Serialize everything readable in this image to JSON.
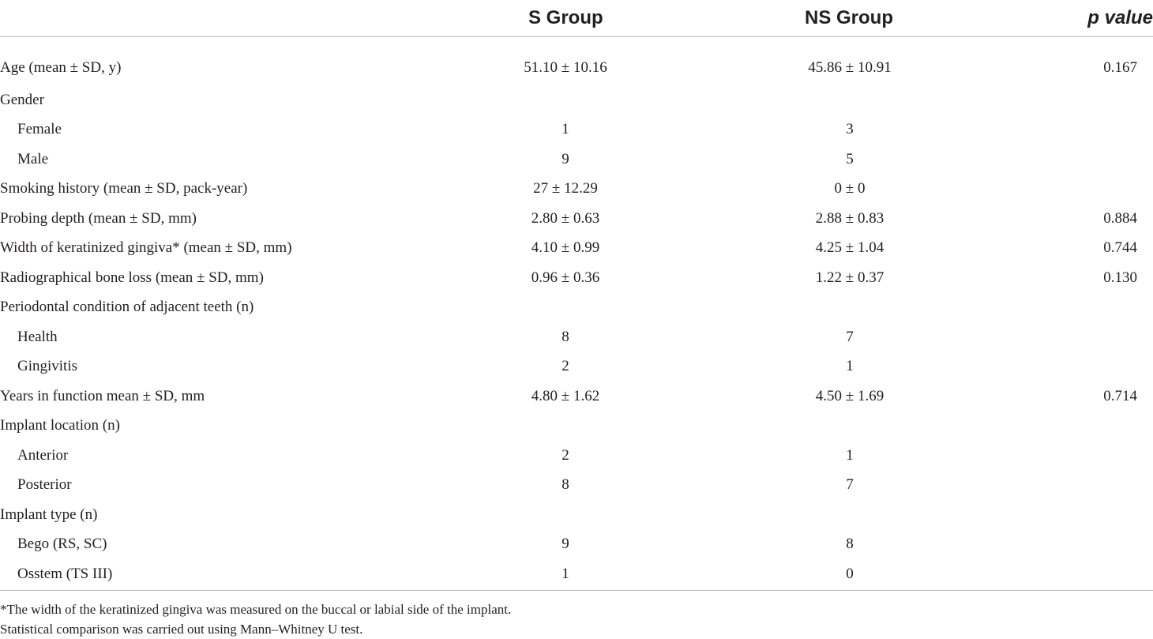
{
  "table": {
    "headers": {
      "label": "",
      "s_group": "S Group",
      "ns_group": "NS Group",
      "p_value": "p value"
    },
    "rows": [
      {
        "label": "Age (mean ± SD, y)",
        "indent": false,
        "s": "51.10 ± 10.16",
        "ns": "45.86 ± 10.91",
        "p": "0.167"
      },
      {
        "label": "Gender",
        "indent": false,
        "s": "",
        "ns": "",
        "p": ""
      },
      {
        "label": "Female",
        "indent": true,
        "s": "1",
        "ns": "3",
        "p": ""
      },
      {
        "label": "Male",
        "indent": true,
        "s": "9",
        "ns": "5",
        "p": ""
      },
      {
        "label": "Smoking history (mean ± SD, pack-year)",
        "indent": false,
        "s": "27 ± 12.29",
        "ns": "0 ± 0",
        "p": ""
      },
      {
        "label": "Probing depth (mean ± SD, mm)",
        "indent": false,
        "s": "2.80 ± 0.63",
        "ns": "2.88 ± 0.83",
        "p": "0.884"
      },
      {
        "label": "Width of keratinized gingiva* (mean ± SD, mm)",
        "indent": false,
        "s": "4.10 ± 0.99",
        "ns": "4.25 ± 1.04",
        "p": "0.744"
      },
      {
        "label": "Radiographical bone loss (mean ± SD, mm)",
        "indent": false,
        "s": "0.96 ± 0.36",
        "ns": "1.22 ± 0.37",
        "p": "0.130"
      },
      {
        "label": "Periodontal condition of adjacent teeth (n)",
        "indent": false,
        "s": "",
        "ns": "",
        "p": ""
      },
      {
        "label": "Health",
        "indent": true,
        "s": "8",
        "ns": "7",
        "p": ""
      },
      {
        "label": "Gingivitis",
        "indent": true,
        "s": "2",
        "ns": "1",
        "p": ""
      },
      {
        "label": "Years in function mean ± SD, mm",
        "indent": false,
        "s": "4.80 ± 1.62",
        "ns": "4.50 ± 1.69",
        "p": "0.714"
      },
      {
        "label": "Implant location (n)",
        "indent": false,
        "s": "",
        "ns": "",
        "p": ""
      },
      {
        "label": "Anterior",
        "indent": true,
        "s": "2",
        "ns": "1",
        "p": ""
      },
      {
        "label": "Posterior",
        "indent": true,
        "s": "8",
        "ns": "7",
        "p": ""
      },
      {
        "label": "Implant type (n)",
        "indent": false,
        "s": "",
        "ns": "",
        "p": ""
      },
      {
        "label": "Bego (RS, SC)",
        "indent": true,
        "s": "9",
        "ns": "8",
        "p": ""
      },
      {
        "label": "Osstem (TS III)",
        "indent": true,
        "s": "1",
        "ns": "0",
        "p": ""
      }
    ]
  },
  "footnotes": {
    "note_1": "*The width of the keratinized gingiva was measured on the buccal or labial side of the implant.",
    "note_2": "Statistical comparison was carried out using Mann–Whitney U test."
  }
}
